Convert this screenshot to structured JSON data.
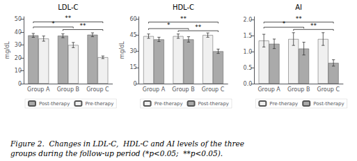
{
  "chart_data": [
    {
      "type": "bar",
      "title": "LDL-C",
      "ylabel": "mg/dL",
      "categories": [
        "Group A",
        "Group B",
        "Group C"
      ],
      "series": [
        {
          "name": "Post-therapy",
          "color": "#aaaaaa",
          "values": [
            37.5,
            37.2,
            38.0
          ],
          "errors": [
            1.5,
            1.5,
            1.5
          ]
        },
        {
          "name": "Pre-therapy",
          "color": "#f0f0f0",
          "values": [
            35.0,
            30.0,
            20.5
          ],
          "errors": [
            2.0,
            2.0,
            1.0
          ]
        }
      ],
      "ylim": [
        0,
        52
      ],
      "yticks": [
        0,
        10,
        20,
        30,
        40,
        50
      ],
      "grid": false,
      "legend": "bottom",
      "annotations": [
        {
          "x1": "Group A",
          "x2": "Group B",
          "y": 44,
          "label": "*"
        },
        {
          "x1": "Group A",
          "x2": "Group C",
          "y": 48,
          "label": "**"
        },
        {
          "x1": "Group B",
          "x2": "Group C",
          "y": 42,
          "label": "**"
        }
      ]
    },
    {
      "type": "bar",
      "title": "HDL-C",
      "ylabel": "mg/dL",
      "categories": [
        "Group A",
        "Group B",
        "Group C"
      ],
      "series": [
        {
          "name": "Pre-therapy",
          "color": "#f0f0f0",
          "values": [
            44.0,
            44.0,
            45.0
          ],
          "errors": [
            2.0,
            2.0,
            2.0
          ]
        },
        {
          "name": "Post-therapy",
          "color": "#aaaaaa",
          "values": [
            41.0,
            41.0,
            30.0
          ],
          "errors": [
            2.0,
            2.5,
            2.0
          ]
        }
      ],
      "ylim": [
        0,
        62
      ],
      "yticks": [
        0,
        15,
        30,
        45,
        60
      ],
      "grid": false,
      "legend": "bottom",
      "annotations": [
        {
          "x1": "Group A",
          "x2": "Group B",
          "y": 51,
          "label": "*"
        },
        {
          "x1": "Group A",
          "x2": "Group C",
          "y": 57,
          "label": "**"
        },
        {
          "x1": "Group B",
          "x2": "Group C",
          "y": 49,
          "label": "**"
        }
      ]
    },
    {
      "type": "bar",
      "title": "AI",
      "categories": [
        "Group A",
        "Group B",
        "Group C"
      ],
      "series": [
        {
          "name": "Pre-therapy",
          "color": "#f0f0f0",
          "values": [
            1.35,
            1.4,
            1.4
          ],
          "errors": [
            0.2,
            0.2,
            0.2
          ]
        },
        {
          "name": "Post-therapy",
          "color": "#aaaaaa",
          "values": [
            1.25,
            1.1,
            0.65
          ],
          "errors": [
            0.15,
            0.2,
            0.1
          ]
        }
      ],
      "ylim": [
        0.0,
        2.1
      ],
      "yticks": [
        {
          "value": 0,
          "label": "0.0"
        },
        0.5,
        {
          "value": 1,
          "label": "1.0"
        },
        1.5,
        {
          "value": 2,
          "label": "2.0"
        }
      ],
      "grid": false,
      "legend": "bottom",
      "annotations": [
        {
          "x1": "Group A",
          "x2": "Group B",
          "y": 1.77,
          "label": "*"
        },
        {
          "x1": "Group A",
          "x2": "Group C",
          "y": 1.93,
          "label": "**"
        },
        {
          "x1": "Group B",
          "x2": "Group C",
          "y": 1.7,
          "label": "**"
        }
      ]
    }
  ],
  "caption": "Figure 2.  Changes in LDL-C,  HDL-C and AI levels of the three\ngroups during the follow-up period (*p<0.05;  **p<0.05)."
}
